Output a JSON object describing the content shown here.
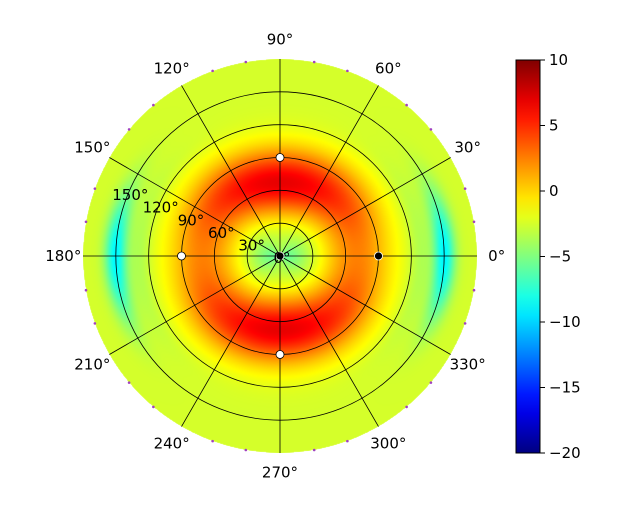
{
  "chart_data": {
    "type": "heatmap",
    "projection": "polar",
    "title": "",
    "angular_ticks": [
      {
        "deg": 0,
        "label": "0°"
      },
      {
        "deg": 30,
        "label": "30°"
      },
      {
        "deg": 60,
        "label": "60°"
      },
      {
        "deg": 90,
        "label": "90°"
      },
      {
        "deg": 120,
        "label": "120°"
      },
      {
        "deg": 150,
        "label": "150°"
      },
      {
        "deg": 180,
        "label": "180°"
      },
      {
        "deg": 210,
        "label": "210°"
      },
      {
        "deg": 240,
        "label": "240°"
      },
      {
        "deg": 270,
        "label": "270°"
      },
      {
        "deg": 300,
        "label": "300°"
      },
      {
        "deg": 330,
        "label": "330°"
      }
    ],
    "radial_ticks": [
      {
        "value": 0,
        "label": "0°"
      },
      {
        "value": 30,
        "label": "30°"
      },
      {
        "value": 60,
        "label": "60°"
      },
      {
        "value": 90,
        "label": "90°"
      },
      {
        "value": 120,
        "label": "120°"
      },
      {
        "value": 150,
        "label": "150°"
      }
    ],
    "rlim": [
      0,
      180
    ],
    "grid": true,
    "colormap": "jet",
    "colorbar": {
      "vmin": -20,
      "vmax": 10,
      "ticks": [
        10,
        5,
        0,
        -5,
        -10,
        -15,
        -20
      ],
      "tick_labels": [
        "10",
        "5",
        "0",
        "−5",
        "−10",
        "−15",
        "−20"
      ],
      "placement": "right"
    },
    "approx_field": {
      "description_units": "dB",
      "peak_value": 6,
      "background_value": -2.5,
      "minimum_value": -9,
      "lobes": [
        {
          "theta_deg": 90,
          "r_deg": 65,
          "value": 6
        },
        {
          "theta_deg": 270,
          "r_deg": 65,
          "value": 6
        },
        {
          "theta_deg": 45,
          "r_deg": 75,
          "value": 4
        },
        {
          "theta_deg": 135,
          "r_deg": 75,
          "value": 4
        },
        {
          "theta_deg": 225,
          "r_deg": 75,
          "value": 4
        },
        {
          "theta_deg": 315,
          "r_deg": 75,
          "value": 4
        }
      ],
      "minima": [
        {
          "theta_deg": 0,
          "r_deg": 150,
          "value": -9
        },
        {
          "theta_deg": 180,
          "r_deg": 150,
          "value": -9
        }
      ]
    },
    "markers": [
      {
        "theta_deg": 0,
        "r_deg": 0,
        "color": "#000000"
      },
      {
        "theta_deg": 90,
        "r_deg": 90,
        "color": "#ffffff"
      },
      {
        "theta_deg": 180,
        "r_deg": 90,
        "color": "#ffffff"
      },
      {
        "theta_deg": 270,
        "r_deg": 90,
        "color": "#ffffff"
      },
      {
        "theta_deg": 0,
        "r_deg": 90,
        "color": "#000000"
      }
    ],
    "boundary_markers_color": "#a040c0"
  }
}
